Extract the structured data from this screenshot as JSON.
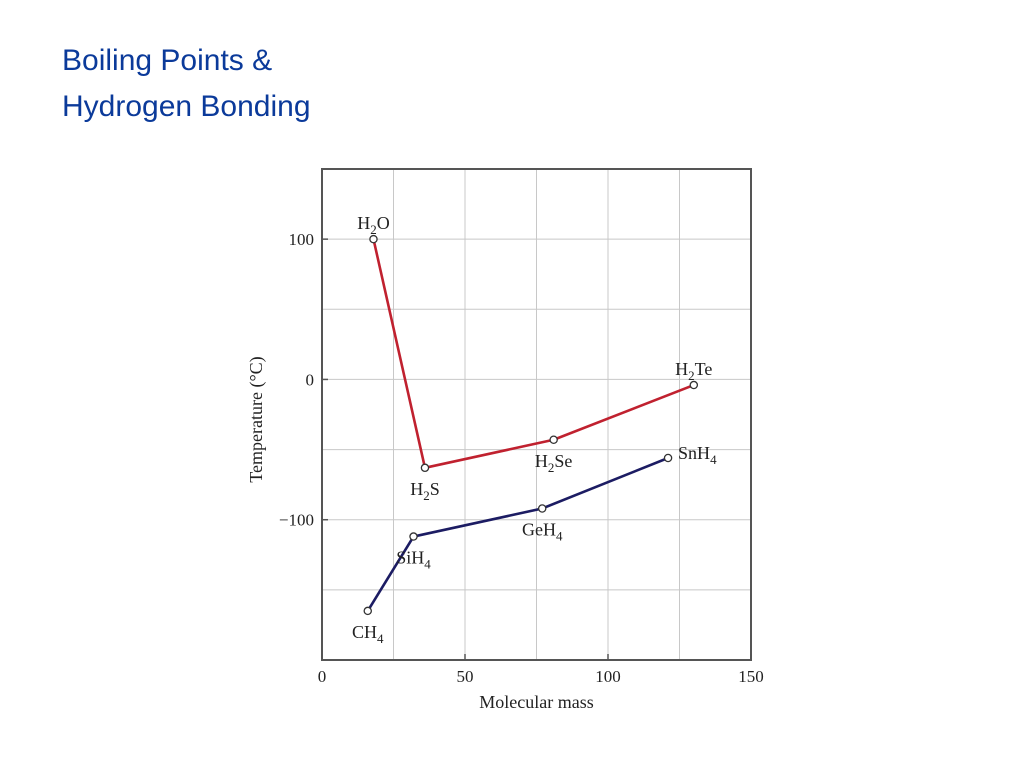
{
  "slide": {
    "title_line1": "Boiling Points &",
    "title_line2": "Hydrogen Bonding"
  },
  "colors": {
    "title": "#0b3a9a",
    "group16": "#c0212f",
    "group14": "#1c1c63",
    "grid": "#c8c8c8",
    "frame": "#555555"
  },
  "chart_data": {
    "type": "line",
    "xlabel": "Molecular mass",
    "ylabel": "Temperature (°C)",
    "xlim": [
      0,
      150
    ],
    "ylim": [
      -200,
      150
    ],
    "xticks": [
      {
        "value": 0,
        "label": "0"
      },
      {
        "value": 50,
        "label": "50"
      },
      {
        "value": 100,
        "label": "100"
      },
      {
        "value": 150,
        "label": "150"
      }
    ],
    "yticks": [
      {
        "value": 100,
        "label": "100"
      },
      {
        "value": 0,
        "label": "0"
      },
      {
        "value": -100,
        "label": "−100"
      }
    ],
    "grid": true,
    "series": [
      {
        "color": "#c0212f",
        "points": [
          {
            "x": 18,
            "y": 100,
            "label": "H",
            "sub": "2",
            "suffix": "O",
            "pos": "above"
          },
          {
            "x": 36,
            "y": -63,
            "label": "H",
            "sub": "2",
            "suffix": "S",
            "pos": "below"
          },
          {
            "x": 81,
            "y": -43,
            "label": "H",
            "sub": "2",
            "suffix": "Se",
            "pos": "below"
          },
          {
            "x": 130,
            "y": -4,
            "label": "H",
            "sub": "2",
            "suffix": "Te",
            "pos": "above"
          }
        ]
      },
      {
        "color": "#1c1c63",
        "points": [
          {
            "x": 16,
            "y": -165,
            "label": "CH",
            "sub": "4",
            "suffix": "",
            "pos": "below"
          },
          {
            "x": 32,
            "y": -112,
            "label": "SiH",
            "sub": "4",
            "suffix": "",
            "pos": "below"
          },
          {
            "x": 77,
            "y": -92,
            "label": "GeH",
            "sub": "4",
            "suffix": "",
            "pos": "below"
          },
          {
            "x": 121,
            "y": -56,
            "label": "SnH",
            "sub": "4",
            "suffix": "",
            "pos": "right"
          }
        ]
      }
    ]
  }
}
